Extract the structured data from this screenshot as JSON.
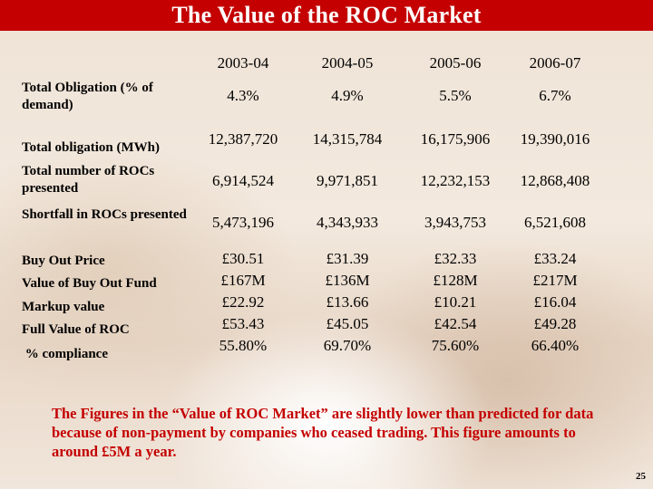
{
  "title": "The Value of the ROC Market",
  "years": [
    "2003-04",
    "2004-05",
    "2005-06",
    "2006-07"
  ],
  "rows": [
    {
      "label": "Total Obligation (% of demand)",
      "values": [
        "4.3%",
        "4.9%",
        "5.5%",
        "6.7%"
      ]
    },
    {
      "label": "Total obligation (MWh)",
      "values": [
        "12,387,720",
        "14,315,784",
        "16,175,906",
        "19,390,016"
      ]
    },
    {
      "label": "Total number of ROCs presented",
      "values": [
        "6,914,524",
        "9,971,851",
        "12,232,153",
        "12,868,408"
      ]
    },
    {
      "label": "Shortfall in ROCs presented",
      "values": [
        "5,473,196",
        "4,343,933",
        "3,943,753",
        "6,521,608"
      ]
    },
    {
      "label": "Buy Out Price",
      "values": [
        "£30.51",
        "£31.39",
        "£32.33",
        "£33.24"
      ]
    },
    {
      "label": "Value of Buy Out Fund",
      "values": [
        "£167M",
        "£136M",
        "£128M",
        "£217M"
      ]
    },
    {
      "label": "Markup value",
      "values": [
        "£22.92",
        "£13.66",
        "£10.21",
        "£16.04"
      ]
    },
    {
      "label": "Full Value of ROC",
      "values": [
        "£53.43",
        "£45.05",
        "£42.54",
        "£49.28"
      ]
    },
    {
      "label": " % compliance",
      "values": [
        "55.80%",
        "69.70%",
        "75.60%",
        "66.40%"
      ]
    }
  ],
  "note": "The Figures in the “Value of ROC Market” are slightly lower than predicted for data because of non-payment by companies who ceased trading.  This figure amounts to around £5M a year.",
  "page_number": "25"
}
